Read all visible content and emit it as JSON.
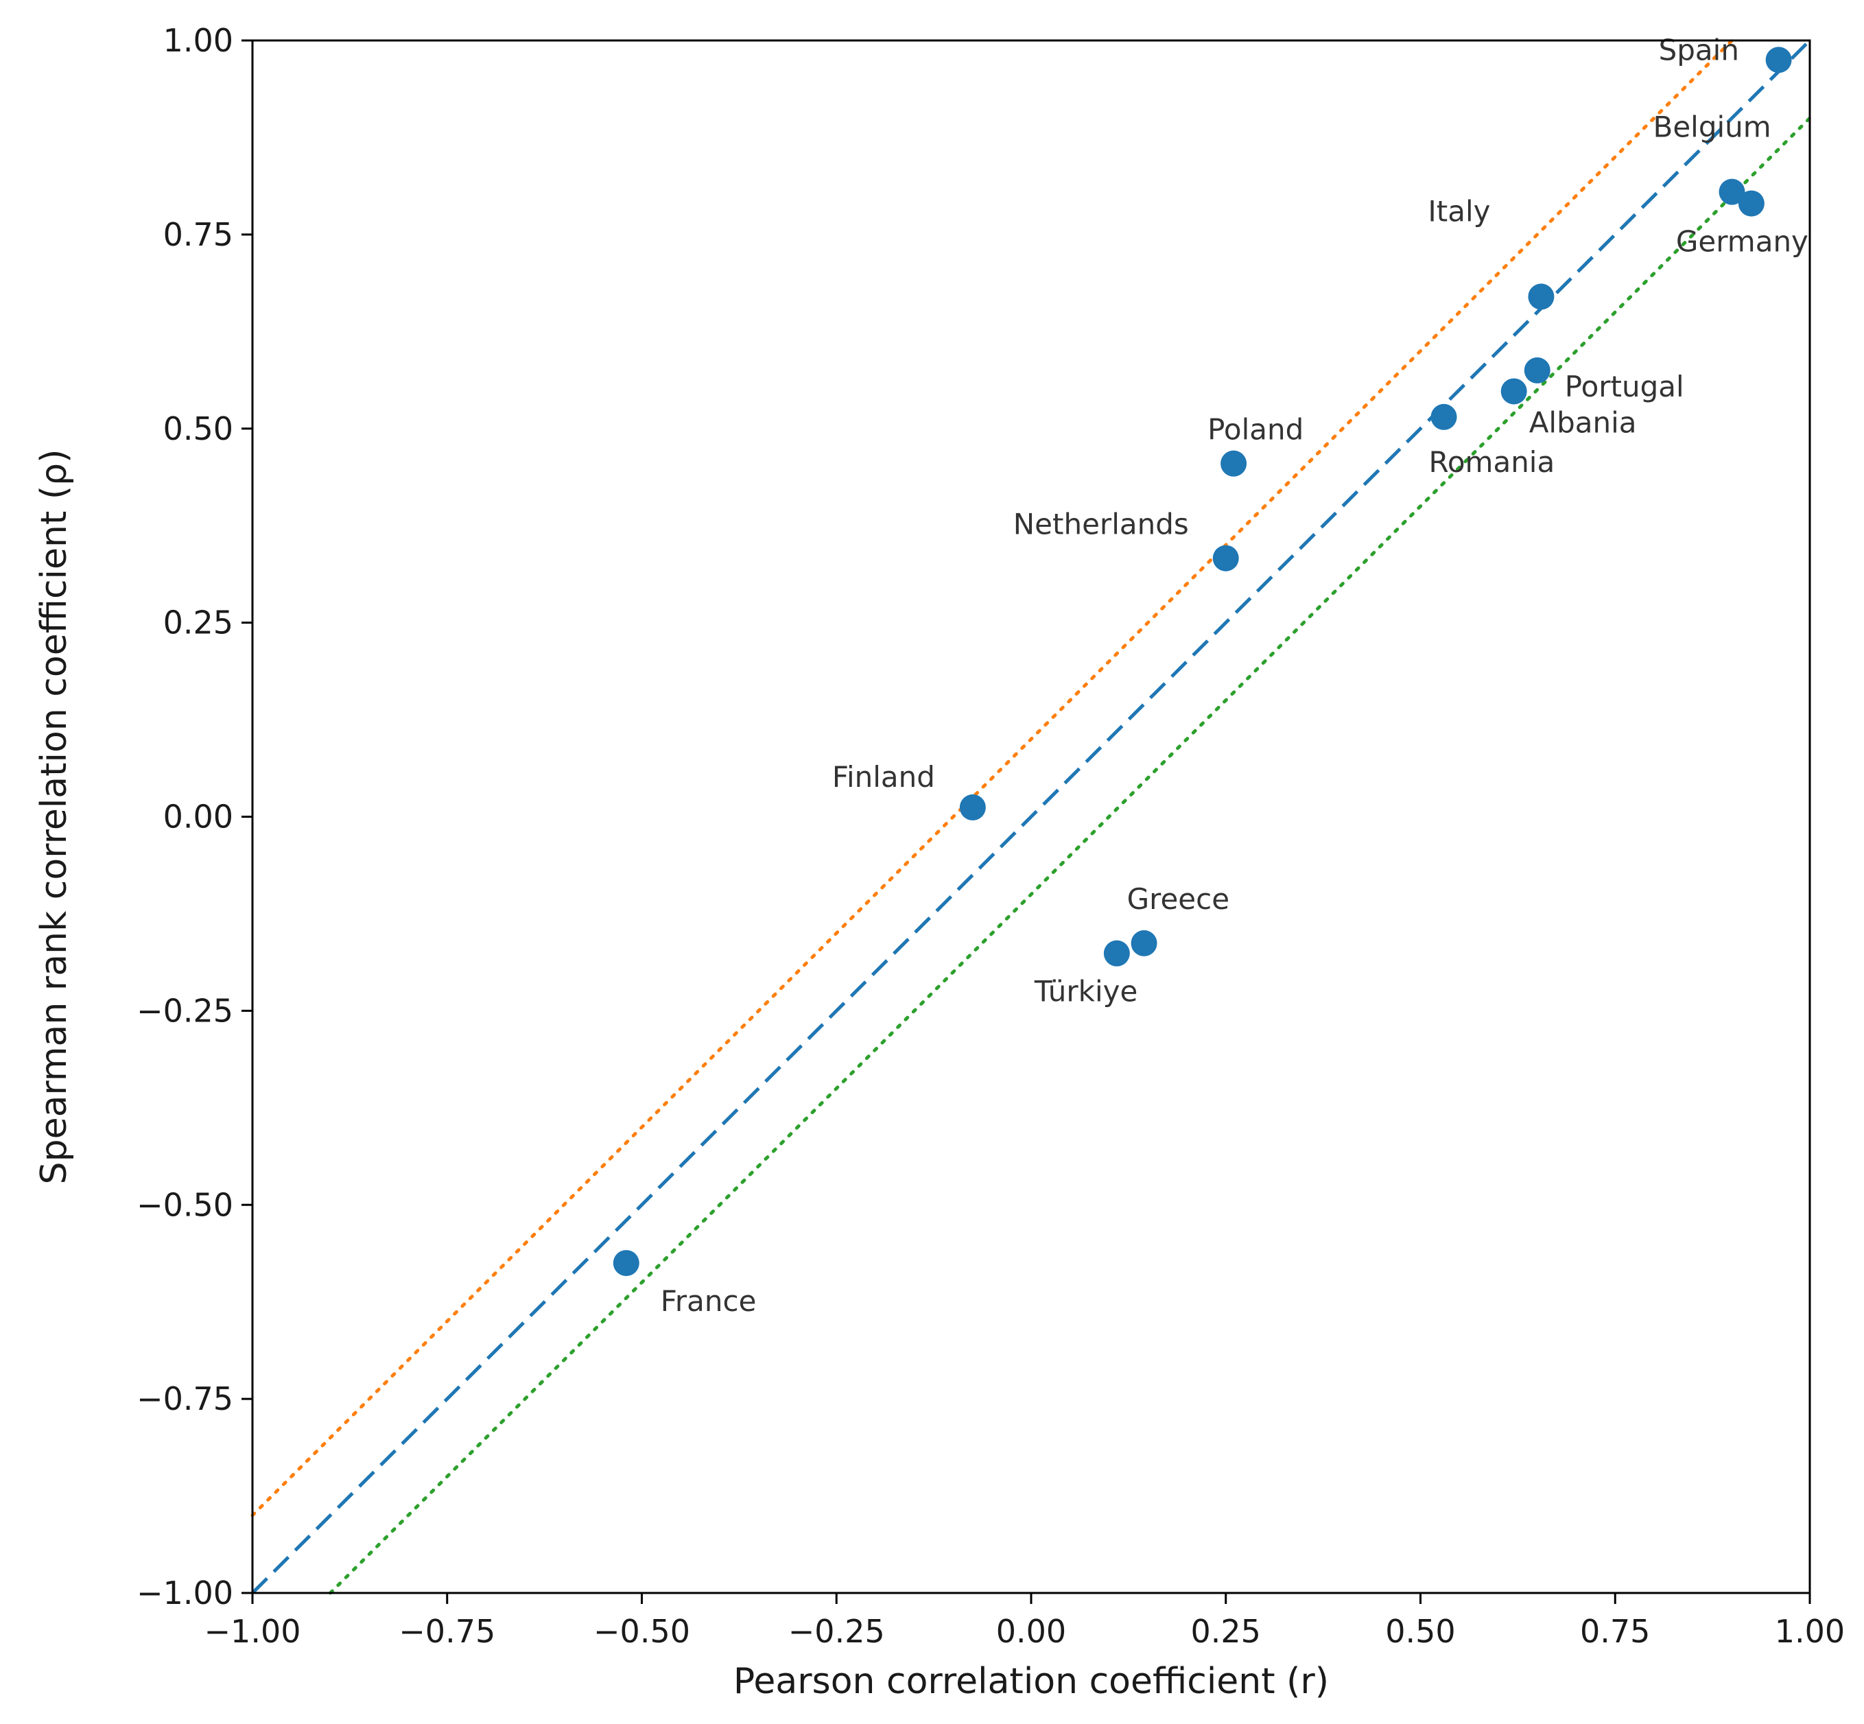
{
  "chart_data": {
    "type": "scatter",
    "title": "",
    "xlabel": "Pearson correlation coefficient (r)",
    "ylabel": "Spearman rank correlation coefficient (ρ)",
    "xlim": [
      -1.0,
      1.0
    ],
    "ylim": [
      -1.0,
      1.0
    ],
    "xticks": [
      -1.0,
      -0.75,
      -0.5,
      -0.25,
      0.0,
      0.25,
      0.5,
      0.75,
      1.0
    ],
    "yticks": [
      -1.0,
      -0.75,
      -0.5,
      -0.25,
      0.0,
      0.25,
      0.5,
      0.75,
      1.0
    ],
    "xtick_labels": [
      "−1.00",
      "−0.75",
      "−0.50",
      "−0.25",
      "0.00",
      "0.25",
      "0.50",
      "0.75",
      "1.00"
    ],
    "ytick_labels": [
      "−1.00",
      "−0.75",
      "−0.50",
      "−0.25",
      "0.00",
      "0.25",
      "0.50",
      "0.75",
      "1.00"
    ],
    "grid": false,
    "point_color": "#1f77b4",
    "points": [
      {
        "label": "Spain",
        "x": 0.96,
        "y": 0.975
      },
      {
        "label": "Belgium",
        "x": 0.9,
        "y": 0.805
      },
      {
        "label": "Germany",
        "x": 0.925,
        "y": 0.79
      },
      {
        "label": "Italy",
        "x": 0.655,
        "y": 0.67
      },
      {
        "label": "Portugal",
        "x": 0.65,
        "y": 0.575
      },
      {
        "label": "Albania",
        "x": 0.62,
        "y": 0.548
      },
      {
        "label": "Romania",
        "x": 0.53,
        "y": 0.515
      },
      {
        "label": "Poland",
        "x": 0.26,
        "y": 0.455
      },
      {
        "label": "Netherlands",
        "x": 0.25,
        "y": 0.333
      },
      {
        "label": "Finland",
        "x": -0.075,
        "y": 0.012
      },
      {
        "label": "Greece",
        "x": 0.145,
        "y": -0.163
      },
      {
        "label": "Türkiye",
        "x": 0.11,
        "y": -0.176
      },
      {
        "label": "France",
        "x": -0.52,
        "y": -0.575
      }
    ],
    "reference_lines": [
      {
        "style": "dashed",
        "color": "#1f77b4",
        "slope": 1,
        "intercept": 0.0
      },
      {
        "style": "dotted",
        "color": "#ff7f0e",
        "slope": 1,
        "intercept": 0.1
      },
      {
        "style": "dotted",
        "color": "#2ca02c",
        "slope": 1,
        "intercept": -0.1
      }
    ]
  }
}
